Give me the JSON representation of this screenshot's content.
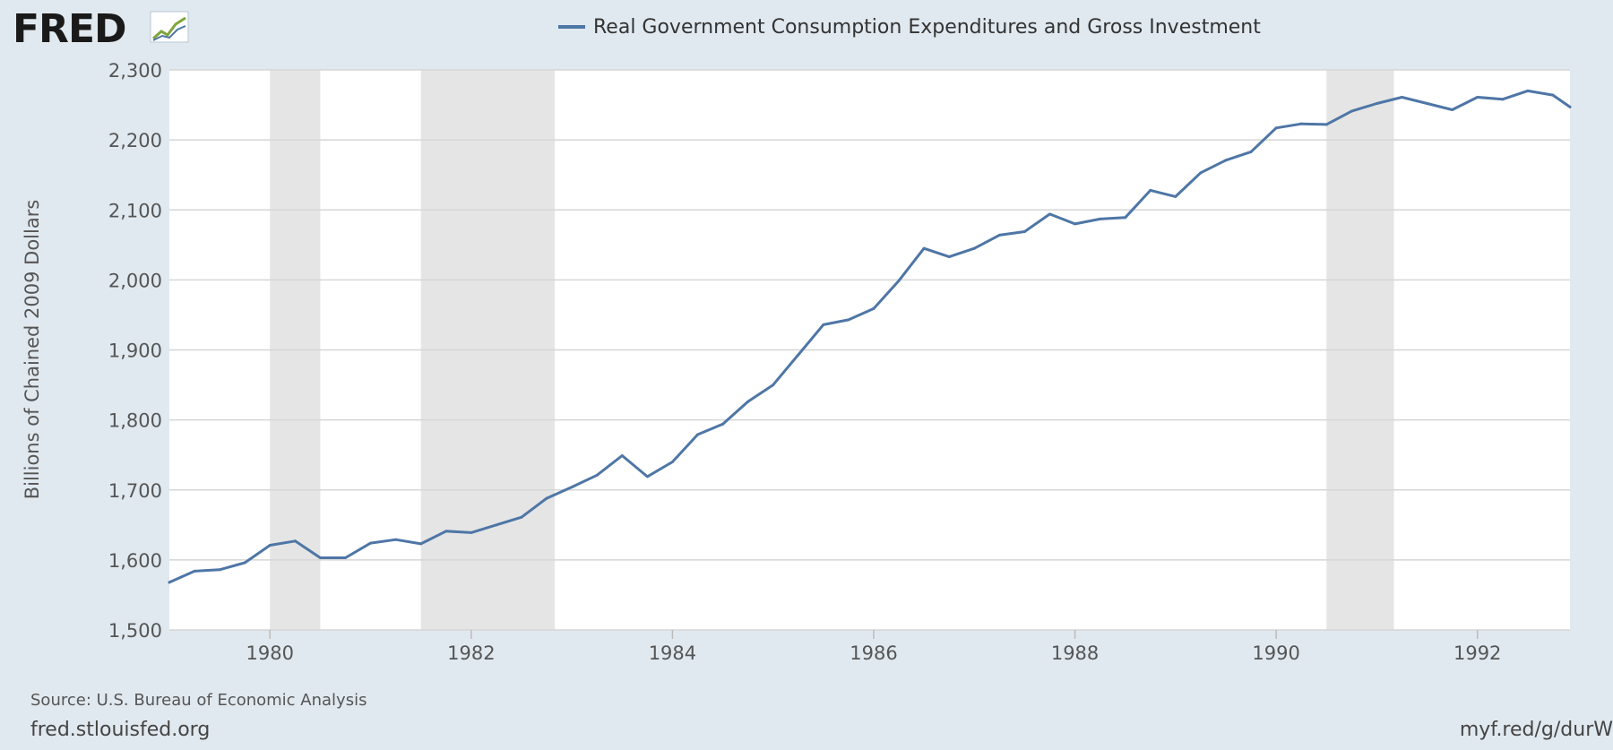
{
  "logo": {
    "text": "FRED"
  },
  "footer": {
    "source": "Source: U.S. Bureau of Economic Analysis",
    "site": "fred.stlouisfed.org",
    "shortlink": "myf.red/g/durW"
  },
  "colors": {
    "background": "#e1e9f0",
    "plot": "#ffffff",
    "series": "#4e76a6",
    "recession": "#e5e5e5",
    "grid": "#d6d6d6",
    "text": "#555555"
  },
  "chart_data": {
    "type": "line",
    "title": "",
    "legend": {
      "entries": [
        "Real Government Consumption Expenditures and Gross Investment"
      ],
      "placement": "top-center"
    },
    "ylabel": "Billions of Chained 2009 Dollars",
    "xlabel": "",
    "xlim": [
      1979.0,
      1992.92
    ],
    "ylim": [
      1500,
      2300
    ],
    "x_ticks": [
      1980,
      1982,
      1984,
      1986,
      1988,
      1990,
      1992
    ],
    "x_tick_labels": [
      "1980",
      "1982",
      "1984",
      "1986",
      "1988",
      "1990",
      "1992"
    ],
    "y_ticks": [
      1500,
      1600,
      1700,
      1800,
      1900,
      2000,
      2100,
      2200,
      2300
    ],
    "y_tick_labels": [
      "1,500",
      "1,600",
      "1,700",
      "1,800",
      "1,900",
      "2,000",
      "2,100",
      "2,200",
      "2,300"
    ],
    "grid": "horizontal",
    "recessions": [
      [
        1980.0,
        1980.5
      ],
      [
        1981.5,
        1982.83
      ],
      [
        1990.5,
        1991.17
      ]
    ],
    "series": [
      {
        "name": "Real Government Consumption Expenditures and Gross Investment",
        "x": [
          1979.0,
          1979.25,
          1979.5,
          1979.75,
          1980.0,
          1980.25,
          1980.5,
          1980.75,
          1981.0,
          1981.25,
          1981.5,
          1981.75,
          1982.0,
          1982.25,
          1982.5,
          1982.75,
          1983.0,
          1983.25,
          1983.5,
          1983.75,
          1984.0,
          1984.25,
          1984.5,
          1984.75,
          1985.0,
          1985.25,
          1985.5,
          1985.75,
          1986.0,
          1986.25,
          1986.5,
          1986.75,
          1987.0,
          1987.25,
          1987.5,
          1987.75,
          1988.0,
          1988.25,
          1988.5,
          1988.75,
          1989.0,
          1989.25,
          1989.5,
          1989.75,
          1990.0,
          1990.25,
          1990.5,
          1990.75,
          1991.0,
          1991.25,
          1991.5,
          1991.75,
          1992.0,
          1992.25,
          1992.5,
          1992.75,
          1992.92
        ],
        "values": [
          1568,
          1584,
          1586,
          1596,
          1621,
          1627,
          1603,
          1603,
          1624,
          1629,
          1623,
          1641,
          1639,
          1650,
          1661,
          1688,
          1704,
          1721,
          1749,
          1719,
          1740,
          1779,
          1794,
          1826,
          1850,
          1893,
          1936,
          1943,
          1959,
          1999,
          2045,
          2033,
          2045,
          2064,
          2069,
          2094,
          2080,
          2087,
          2089,
          2128,
          2119,
          2153,
          2171,
          2183,
          2217,
          2223,
          2222,
          2241,
          2252,
          2261,
          2252,
          2243,
          2261,
          2258,
          2270,
          2264,
          2247
        ]
      }
    ]
  }
}
